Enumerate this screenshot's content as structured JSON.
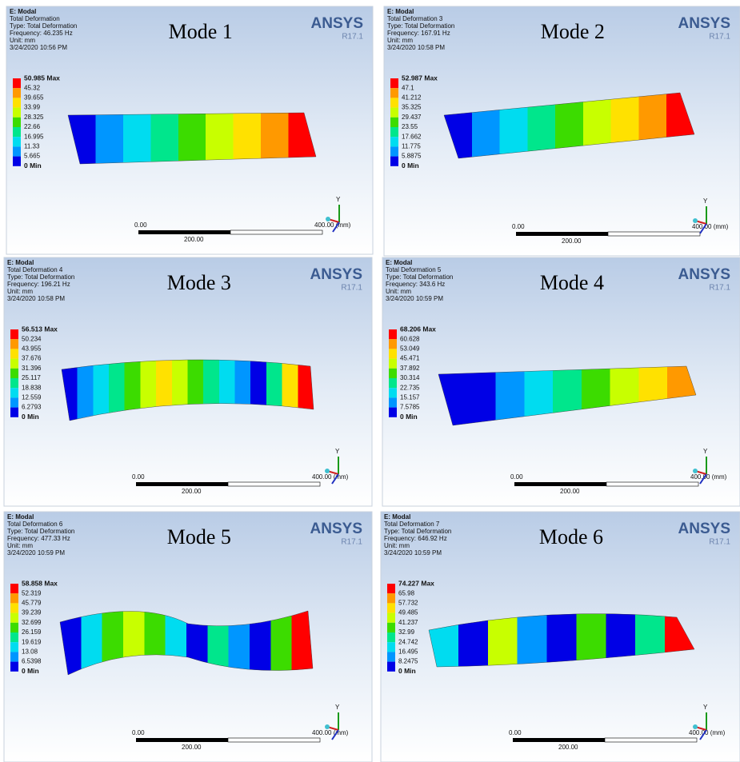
{
  "brand": {
    "name": "ANSYS",
    "version": "R17.1"
  },
  "scale_bar": {
    "start": "0.00",
    "end": "400.00 (mm)",
    "middle": "200.00"
  },
  "triad_label": "Y",
  "panels": [
    {
      "title": "Mode 1",
      "header": [
        "E: Modal",
        "Total Deformation",
        "Type: Total Deformation",
        "Frequency: 46.235 Hz",
        "Unit: mm",
        "3/24/2020 10:56 PM"
      ],
      "legend": [
        "50.985 Max",
        "45.32",
        "39.655",
        "33.99",
        "28.325",
        "22.66",
        "16.995",
        "11.33",
        "5.665",
        "0 Min"
      ]
    },
    {
      "title": "Mode 2",
      "header": [
        "E: Modal",
        "Total Deformation 3",
        "Type: Total Deformation",
        "Frequency: 167.91 Hz",
        "Unit: mm",
        "3/24/2020 10:58 PM"
      ],
      "legend": [
        "52.987 Max",
        "47.1",
        "41.212",
        "35.325",
        "29.437",
        "23.55",
        "17.662",
        "11.775",
        "5.8875",
        "0 Min"
      ]
    },
    {
      "title": "Mode 3",
      "header": [
        "E: Modal",
        "Total Deformation 4",
        "Type: Total Deformation",
        "Frequency: 196.21 Hz",
        "Unit: mm",
        "3/24/2020 10:58 PM"
      ],
      "legend": [
        "56.513 Max",
        "50.234",
        "43.955",
        "37.676",
        "31.396",
        "25.117",
        "18.838",
        "12.559",
        "6.2793",
        "0 Min"
      ]
    },
    {
      "title": "Mode 4",
      "header": [
        "E: Modal",
        "Total Deformation 5",
        "Type: Total Deformation",
        "Frequency: 343.6 Hz",
        "Unit: mm",
        "3/24/2020 10:59 PM"
      ],
      "legend": [
        "68.206 Max",
        "60.628",
        "53.049",
        "45.471",
        "37.892",
        "30.314",
        "22.735",
        "15.157",
        "7.5785",
        "0 Min"
      ]
    },
    {
      "title": "Mode 5",
      "header": [
        "E: Modal",
        "Total Deformation 6",
        "Type: Total Deformation",
        "Frequency: 477.33 Hz",
        "Unit: mm",
        "3/24/2020 10:59 PM"
      ],
      "legend": [
        "58.858 Max",
        "52.319",
        "45.779",
        "39.239",
        "32.699",
        "26.159",
        "19.619",
        "13.08",
        "6.5398",
        "0 Min"
      ]
    },
    {
      "title": "Mode 6",
      "header": [
        "E: Modal",
        "Total Deformation 7",
        "Type: Total Deformation",
        "Frequency: 646.92 Hz",
        "Unit: mm",
        "3/24/2020 10:59 PM"
      ],
      "legend": [
        "74.227 Max",
        "65.98",
        "57.732",
        "49.485",
        "41.237",
        "32.99",
        "24.742",
        "16.495",
        "8.2475",
        "0 Min"
      ]
    }
  ]
}
